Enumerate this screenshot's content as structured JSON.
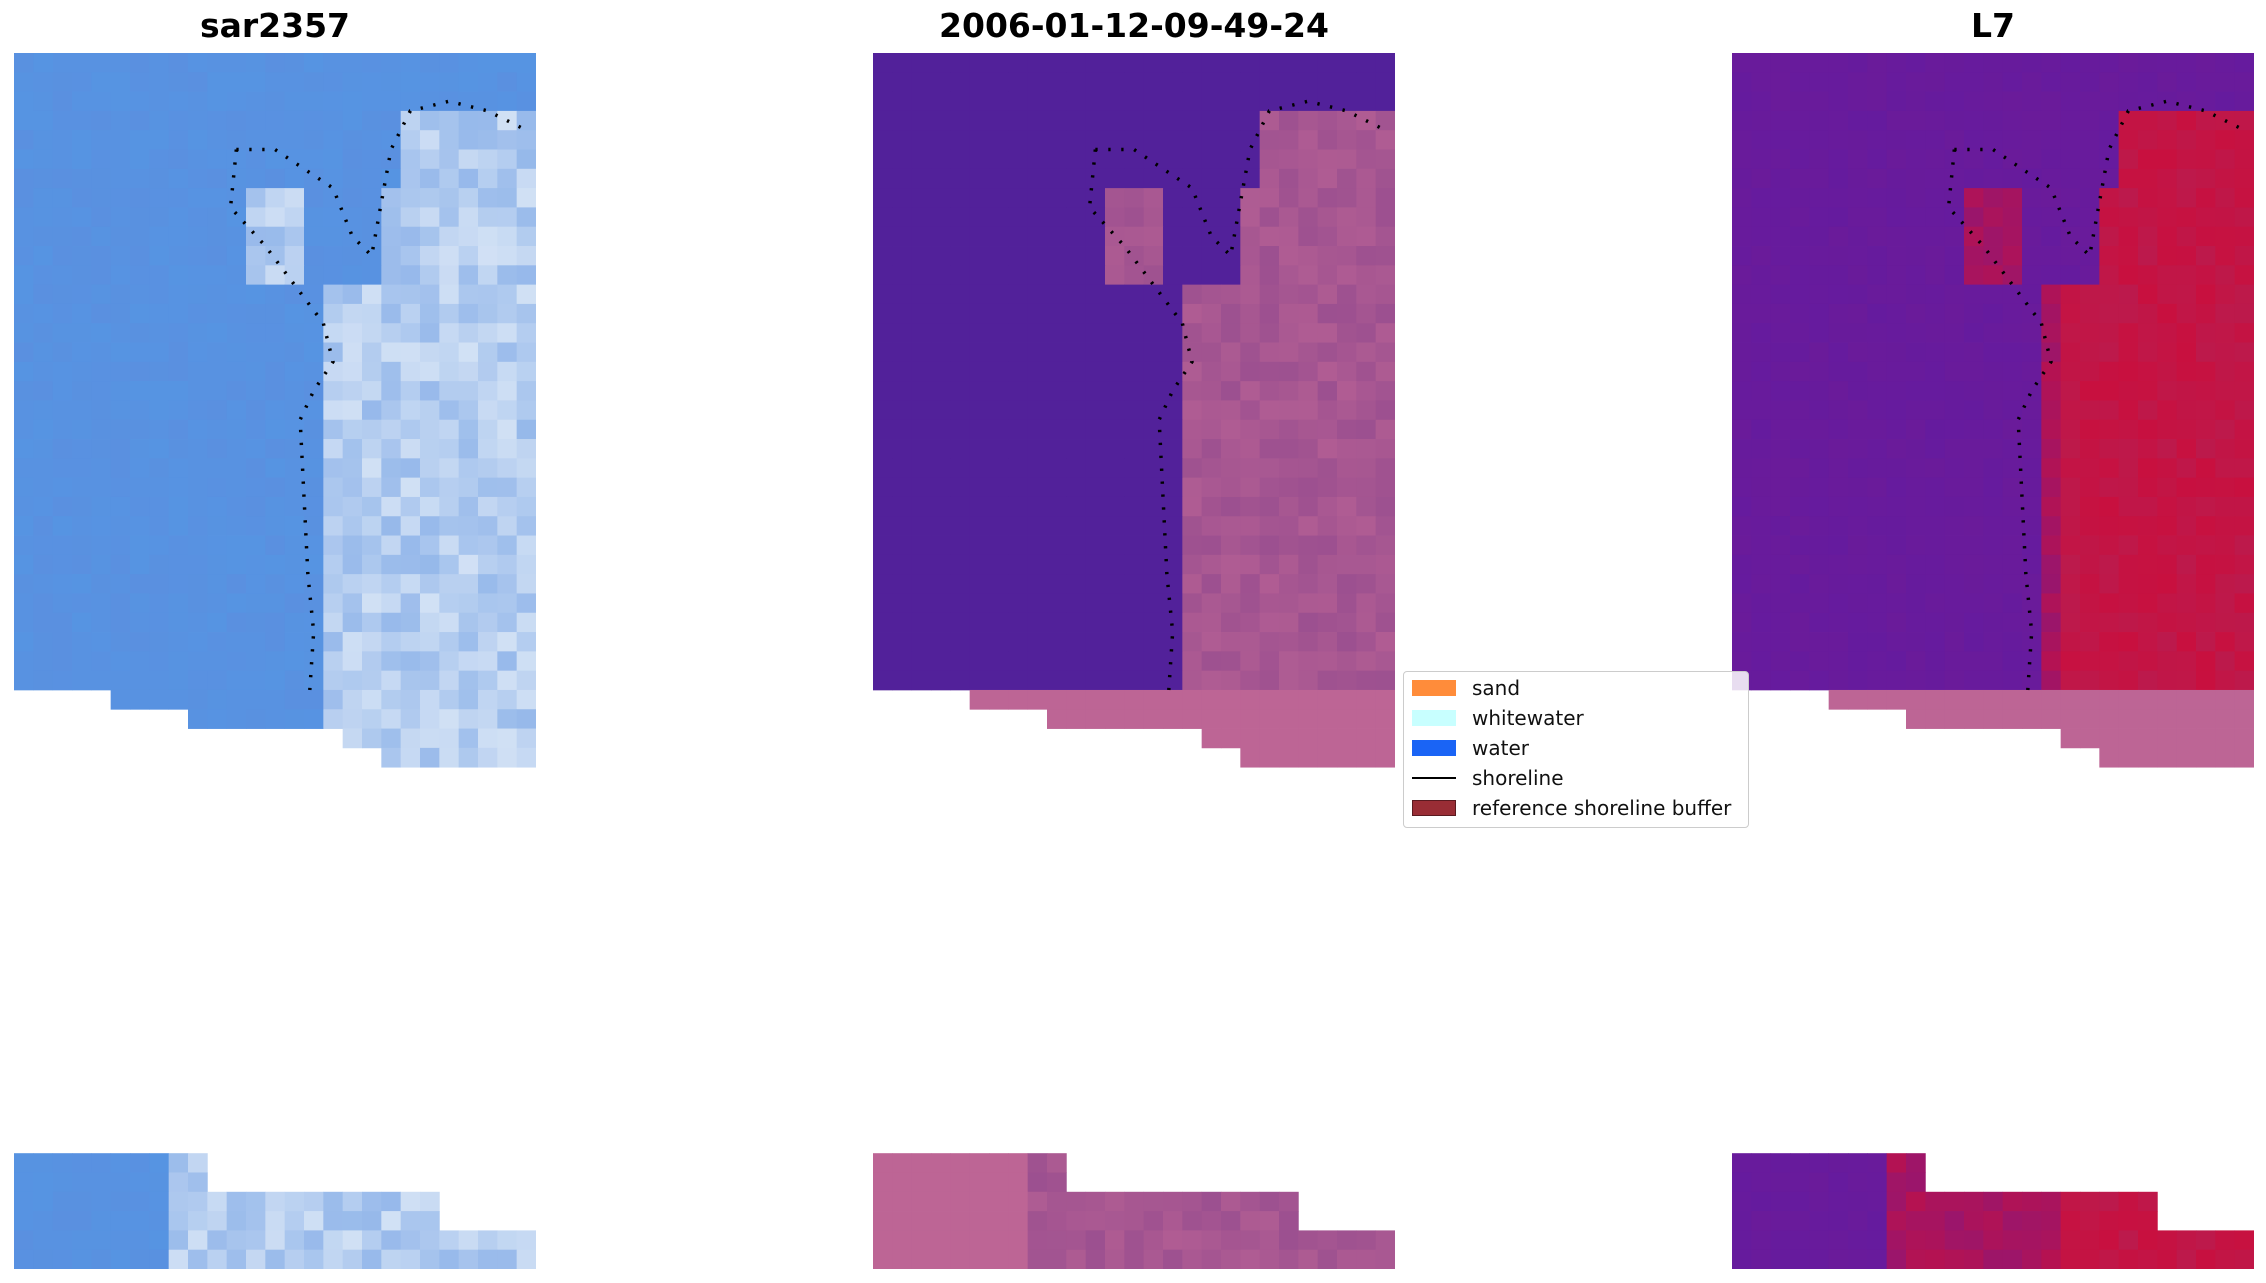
{
  "panels": [
    {
      "title": "sar2357",
      "kind": "rgb"
    },
    {
      "title": "2006-01-12-09-49-24",
      "kind": "classified"
    },
    {
      "title": "L7",
      "kind": "index"
    }
  ],
  "legend": {
    "items": [
      {
        "label": "sand",
        "color": "#ff8c3a",
        "kind": "patch"
      },
      {
        "label": "whitewater",
        "color": "#c8ffff",
        "kind": "patch"
      },
      {
        "label": "water",
        "color": "#1a64f5",
        "kind": "patch"
      },
      {
        "label": "shoreline",
        "color": "#000000",
        "kind": "line"
      },
      {
        "label": "reference shoreline buffer",
        "color": "#992d35",
        "kind": "patch"
      }
    ]
  },
  "colors": {
    "rgb_water": "#5a90e0",
    "rgb_whitewater": "#dfeaf7",
    "class_water": "#52219a",
    "class_buffer": "#bd6595",
    "index_low": "#6a1b9a",
    "index_high": "#c8103f",
    "buffer_overlay": "#bd6595"
  }
}
